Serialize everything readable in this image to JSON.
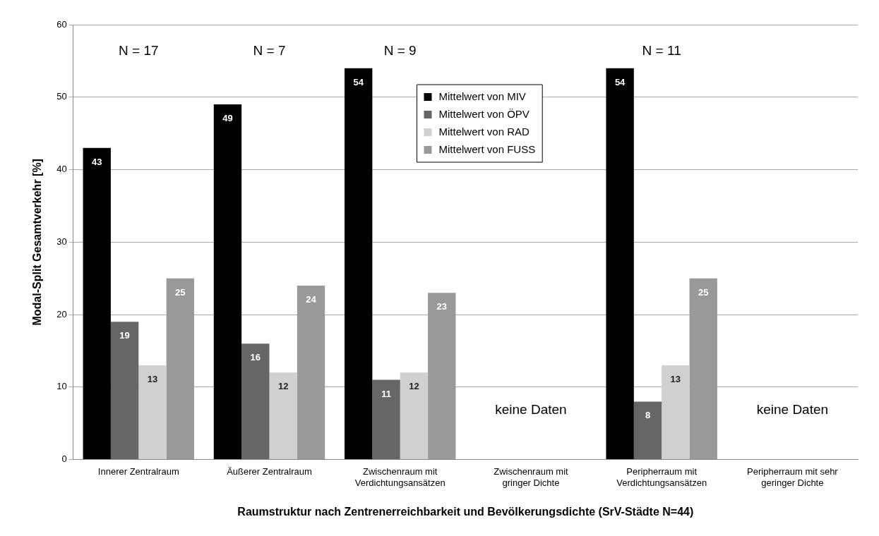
{
  "chart_data": {
    "type": "bar",
    "xlabel": "Raumstruktur nach Zentrenerreichbarkeit und Bevölkerungsdichte (SrV-Städte N=44)",
    "ylabel": "Modal-Split Gesamtverkehr [%]",
    "categories": [
      "Innerer Zentralraum",
      "Äußerer Zentralraum",
      "Zwischenraum mit Verdichtungsansätzen",
      "Zwischenraum mit gringer Dichte",
      "Peripherraum mit Verdichtungsansätzen",
      "Peripherraum mit sehr geringer Dichte"
    ],
    "series": [
      {
        "name": "Mittelwert von MIV",
        "color": "#000000",
        "values": [
          43,
          49,
          54,
          null,
          54,
          null
        ]
      },
      {
        "name": "Mittelwert von ÖPV",
        "color": "#666666",
        "values": [
          19,
          16,
          11,
          null,
          8,
          null
        ]
      },
      {
        "name": "Mittelwert von RAD",
        "color": "#d0d0d0",
        "values": [
          13,
          12,
          12,
          null,
          13,
          null
        ]
      },
      {
        "name": "Mittelwert von FUSS",
        "color": "#999999",
        "values": [
          25,
          24,
          23,
          null,
          25,
          null
        ]
      }
    ],
    "ylim": [
      0,
      60
    ],
    "yticks": [
      0,
      10,
      20,
      30,
      40,
      50,
      60
    ],
    "grid": "y",
    "legend": "top",
    "data_labels": true,
    "annotations": [
      "N = 17",
      "N = 7",
      "N = 9",
      "N = 11",
      "keine Daten",
      "keine Daten"
    ]
  }
}
